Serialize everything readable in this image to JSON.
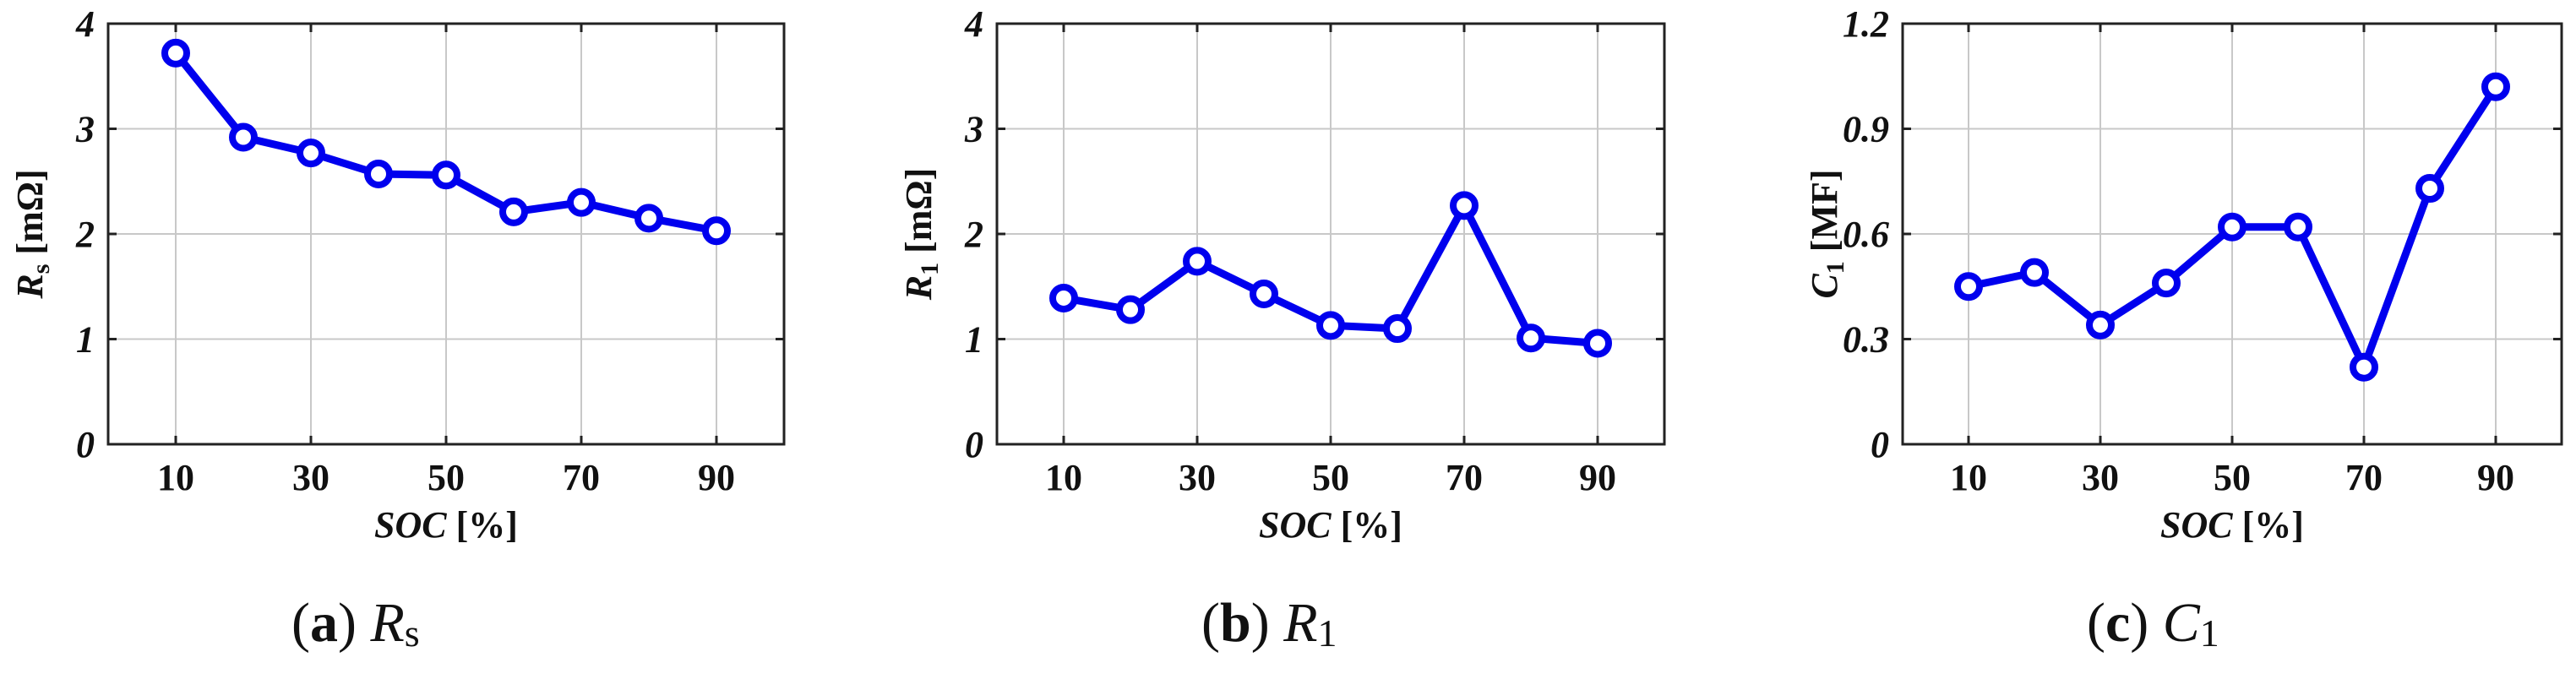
{
  "chart_data": [
    {
      "type": "line",
      "caption": {
        "letter": "a",
        "symbol": "R",
        "subscript": "s"
      },
      "ylabel": {
        "symbol": "R",
        "subscript": "s",
        "unit": "[mΩ]"
      },
      "xlabel": {
        "symbol": "SOC",
        "unit": "[%]"
      },
      "x": [
        10,
        20,
        30,
        40,
        50,
        60,
        70,
        80,
        90
      ],
      "series": [
        {
          "values": [
            3.72,
            2.92,
            2.77,
            2.57,
            2.56,
            2.21,
            2.3,
            2.15,
            2.03
          ]
        }
      ],
      "xlim": [
        0,
        100
      ],
      "ylim": [
        0,
        4
      ],
      "xticks": [
        "10",
        "30",
        "50",
        "70",
        "90"
      ],
      "xtick_values": [
        10,
        30,
        50,
        70,
        90
      ],
      "yticks": [
        "0",
        "1",
        "2",
        "3",
        "4"
      ],
      "ytick_values": [
        0,
        1,
        2,
        3,
        4
      ],
      "grid": true,
      "color": "#0000ee"
    },
    {
      "type": "line",
      "caption": {
        "letter": "b",
        "symbol": "R",
        "subscript": "1"
      },
      "ylabel": {
        "symbol": "R",
        "subscript": "1",
        "unit": "[mΩ]"
      },
      "xlabel": {
        "symbol": "SOC",
        "unit": "[%]"
      },
      "x": [
        10,
        20,
        30,
        40,
        50,
        60,
        70,
        80,
        90
      ],
      "series": [
        {
          "values": [
            1.39,
            1.28,
            1.74,
            1.43,
            1.13,
            1.1,
            2.27,
            1.01,
            0.96
          ]
        }
      ],
      "xlim": [
        0,
        100
      ],
      "ylim": [
        0,
        4
      ],
      "xticks": [
        "10",
        "30",
        "50",
        "70",
        "90"
      ],
      "xtick_values": [
        10,
        30,
        50,
        70,
        90
      ],
      "yticks": [
        "0",
        "1",
        "2",
        "3",
        "4"
      ],
      "ytick_values": [
        0,
        1,
        2,
        3,
        4
      ],
      "grid": true,
      "color": "#0000ee"
    },
    {
      "type": "line",
      "caption": {
        "letter": "c",
        "symbol": "C",
        "subscript": "1"
      },
      "ylabel": {
        "symbol": "C",
        "subscript": "1",
        "unit": "[MF]"
      },
      "xlabel": {
        "symbol": "SOC",
        "unit": "[%]"
      },
      "x": [
        10,
        20,
        30,
        40,
        50,
        60,
        70,
        80,
        90
      ],
      "series": [
        {
          "values": [
            0.45,
            0.49,
            0.34,
            0.46,
            0.62,
            0.62,
            0.22,
            0.73,
            1.02
          ]
        }
      ],
      "xlim": [
        0,
        100
      ],
      "ylim": [
        0,
        1.2
      ],
      "xticks": [
        "10",
        "30",
        "50",
        "70",
        "90"
      ],
      "xtick_values": [
        10,
        30,
        50,
        70,
        90
      ],
      "yticks": [
        "0",
        "0.3",
        "0.6",
        "0.9",
        "1.2"
      ],
      "ytick_values": [
        0,
        0.3,
        0.6,
        0.9,
        1.2
      ],
      "grid": true,
      "color": "#0000ee"
    }
  ]
}
